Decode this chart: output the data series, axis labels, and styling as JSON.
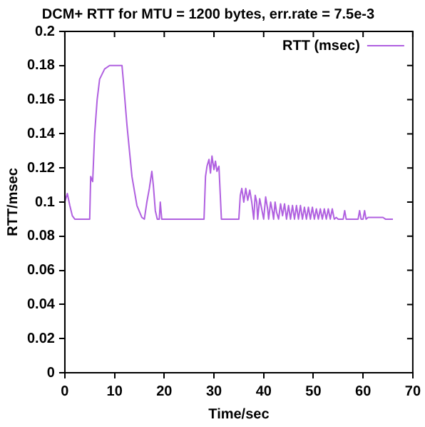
{
  "chart_data": {
    "type": "line",
    "title": "DCM+ RTT for MTU = 1200 bytes, err.rate = 7.5e-3",
    "xlabel": "Time/sec",
    "ylabel": "RTT/msec",
    "legend": "top right",
    "grid": false,
    "marker": "none",
    "line_style": "solid",
    "xlim": [
      0,
      70
    ],
    "xticks": [
      0,
      10,
      20,
      30,
      40,
      50,
      60,
      70
    ],
    "ylim": [
      0,
      0.2
    ],
    "yticks": [
      0,
      0.02,
      0.04,
      0.06,
      0.08,
      0.1,
      0.12,
      0.14,
      0.16,
      0.18,
      0.2
    ],
    "x": [
      0,
      0.5,
      1,
      1.5,
      2,
      5,
      5.2,
      5.6,
      6,
      6.5,
      7,
      8,
      9,
      11.5,
      11.8,
      12.5,
      13.5,
      14.5,
      15.5,
      16,
      16.5,
      17,
      17.5,
      17.8,
      18.2,
      18.6,
      19,
      19.2,
      19.5,
      20,
      28,
      28.3,
      28.6,
      29,
      29.3,
      29.6,
      30,
      30.3,
      30.6,
      31,
      31.5,
      32,
      35,
      35.3,
      35.6,
      36,
      36.4,
      36.8,
      37.2,
      37.6,
      38,
      38.3,
      38.6,
      38.8,
      39.2,
      39.6,
      40,
      40.4,
      40.8,
      41,
      41.4,
      41.8,
      42,
      42.3,
      42.6,
      43,
      43.4,
      43.8,
      44.2,
      44.6,
      45,
      45.4,
      45.8,
      46.2,
      46.6,
      47,
      47.4,
      47.8,
      48.2,
      48.6,
      49,
      49.4,
      49.8,
      50.2,
      50.6,
      51,
      51.4,
      51.8,
      52.2,
      52.6,
      53,
      53.4,
      53.8,
      54.2,
      54.6,
      55,
      56,
      56.3,
      56.6,
      57,
      59,
      59.3,
      59.6,
      60,
      60.3,
      60.6,
      61,
      64,
      64.5,
      65,
      66
    ],
    "series": [
      {
        "name": "RTT (msec)",
        "color": "#b060e0",
        "values": [
          0.1,
          0.105,
          0.098,
          0.092,
          0.09,
          0.09,
          0.115,
          0.112,
          0.14,
          0.16,
          0.172,
          0.178,
          0.18,
          0.18,
          0.17,
          0.145,
          0.115,
          0.098,
          0.091,
          0.09,
          0.1,
          0.108,
          0.118,
          0.11,
          0.095,
          0.09,
          0.09,
          0.1,
          0.09,
          0.09,
          0.09,
          0.115,
          0.121,
          0.125,
          0.117,
          0.127,
          0.119,
          0.124,
          0.118,
          0.121,
          0.09,
          0.09,
          0.09,
          0.104,
          0.108,
          0.1,
          0.108,
          0.101,
          0.107,
          0.1,
          0.09,
          0.104,
          0.1,
          0.09,
          0.102,
          0.096,
          0.09,
          0.103,
          0.096,
          0.09,
          0.1,
          0.094,
          0.09,
          0.1,
          0.094,
          0.09,
          0.099,
          0.092,
          0.099,
          0.09,
          0.098,
          0.09,
          0.098,
          0.09,
          0.098,
          0.09,
          0.098,
          0.09,
          0.097,
          0.09,
          0.097,
          0.09,
          0.097,
          0.09,
          0.096,
          0.09,
          0.096,
          0.09,
          0.096,
          0.09,
          0.096,
          0.09,
          0.096,
          0.09,
          0.091,
          0.09,
          0.09,
          0.095,
          0.09,
          0.09,
          0.09,
          0.095,
          0.09,
          0.09,
          0.095,
          0.09,
          0.091,
          0.091,
          0.09,
          0.09,
          0.09
        ]
      }
    ]
  }
}
